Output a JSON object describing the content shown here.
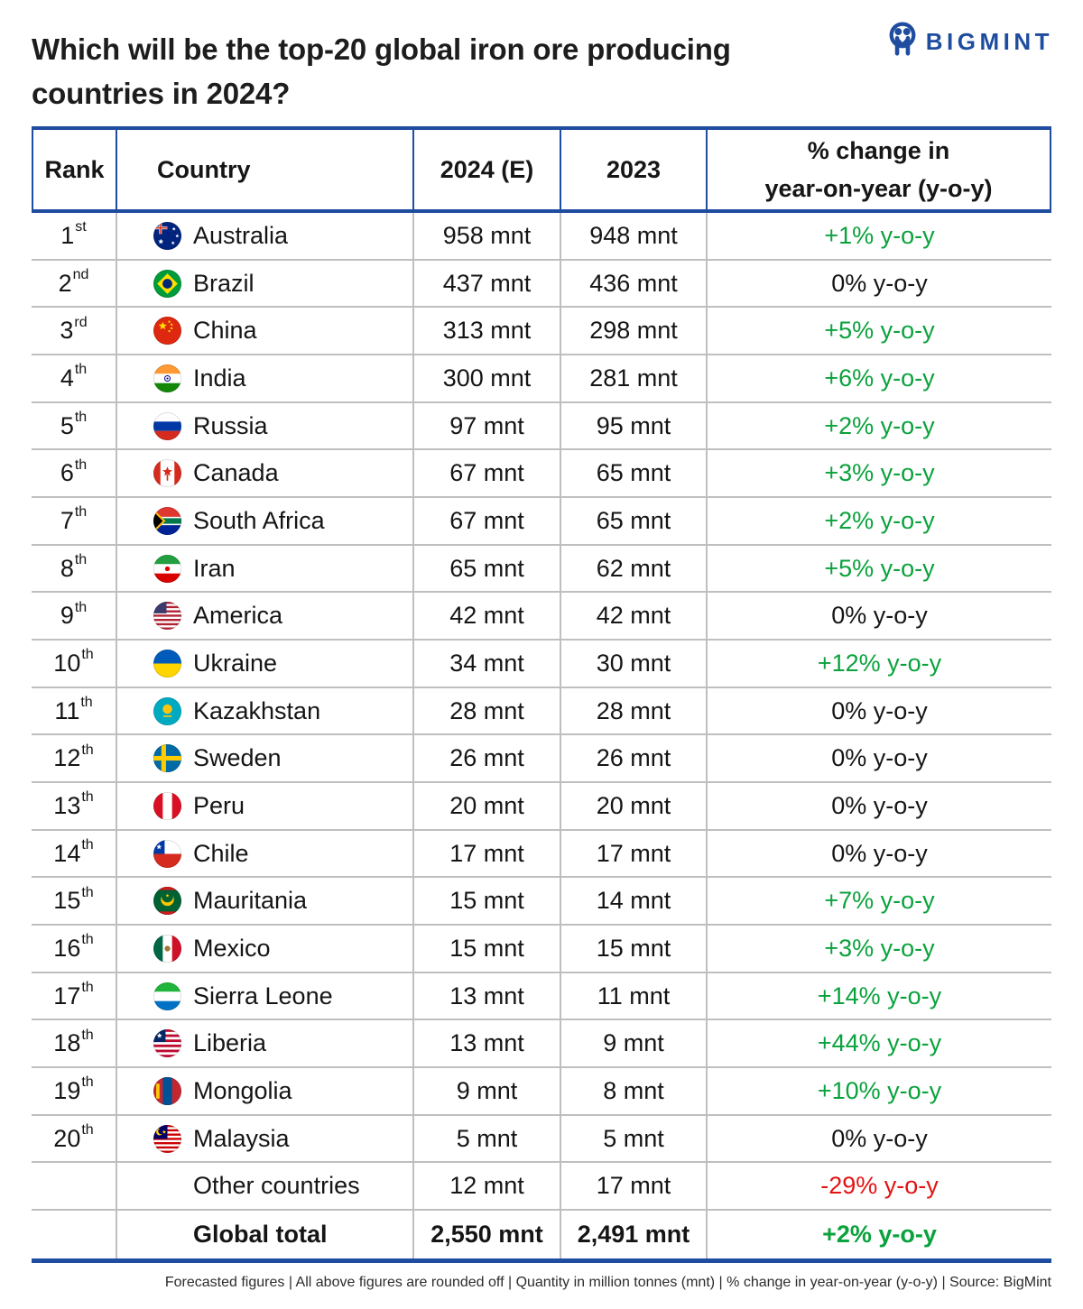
{
  "title": {
    "line1": "Which will be the top-20 global iron ore producing",
    "line2": "countries in 2024?"
  },
  "logo": {
    "text": "BIGMINT"
  },
  "colors": {
    "navy": "#1e4c9f",
    "green": "#0aa23c",
    "red": "#e31313",
    "line": "#bfbfbf"
  },
  "table": {
    "columns": {
      "rank": "Rank",
      "country": "Country",
      "y2024": "2024 (E)",
      "y2023": "2023",
      "change_line1": "% change in",
      "change_line2": "year-on-year (y-o-y)"
    },
    "rows": [
      {
        "rank": "1",
        "suffix": "st",
        "flag": "australia",
        "country": "Australia",
        "y2024": "958 mnt",
        "y2023": "948 mnt",
        "change": "+1% y-o-y",
        "trend": "up"
      },
      {
        "rank": "2",
        "suffix": "nd",
        "flag": "brazil",
        "country": "Brazil",
        "y2024": "437 mnt",
        "y2023": "436 mnt",
        "change": "0% y-o-y",
        "trend": "flat"
      },
      {
        "rank": "3",
        "suffix": "rd",
        "flag": "china",
        "country": "China",
        "y2024": "313 mnt",
        "y2023": "298 mnt",
        "change": "+5% y-o-y",
        "trend": "up"
      },
      {
        "rank": "4",
        "suffix": "th",
        "flag": "india",
        "country": "India",
        "y2024": "300 mnt",
        "y2023": "281 mnt",
        "change": "+6% y-o-y",
        "trend": "up"
      },
      {
        "rank": "5",
        "suffix": "th",
        "flag": "russia",
        "country": "Russia",
        "y2024": "97 mnt",
        "y2023": "95 mnt",
        "change": "+2% y-o-y",
        "trend": "up"
      },
      {
        "rank": "6",
        "suffix": "th",
        "flag": "canada",
        "country": "Canada",
        "y2024": "67 mnt",
        "y2023": "65 mnt",
        "change": "+3% y-o-y",
        "trend": "up"
      },
      {
        "rank": "7",
        "suffix": "th",
        "flag": "south-africa",
        "country": "South Africa",
        "y2024": "67 mnt",
        "y2023": "65 mnt",
        "change": "+2% y-o-y",
        "trend": "up"
      },
      {
        "rank": "8",
        "suffix": "th",
        "flag": "iran",
        "country": "Iran",
        "y2024": "65 mnt",
        "y2023": "62 mnt",
        "change": "+5% y-o-y",
        "trend": "up"
      },
      {
        "rank": "9",
        "suffix": "th",
        "flag": "america",
        "country": "America",
        "y2024": "42 mnt",
        "y2023": "42 mnt",
        "change": "0% y-o-y",
        "trend": "flat"
      },
      {
        "rank": "10",
        "suffix": "th",
        "flag": "ukraine",
        "country": "Ukraine",
        "y2024": "34 mnt",
        "y2023": "30 mnt",
        "change": "+12% y-o-y",
        "trend": "up"
      },
      {
        "rank": "11",
        "suffix": "th",
        "flag": "kazakhstan",
        "country": "Kazakhstan",
        "y2024": "28 mnt",
        "y2023": "28 mnt",
        "change": "0% y-o-y",
        "trend": "flat"
      },
      {
        "rank": "12",
        "suffix": "th",
        "flag": "sweden",
        "country": "Sweden",
        "y2024": "26 mnt",
        "y2023": "26 mnt",
        "change": "0% y-o-y",
        "trend": "flat"
      },
      {
        "rank": "13",
        "suffix": "th",
        "flag": "peru",
        "country": "Peru",
        "y2024": "20 mnt",
        "y2023": "20 mnt",
        "change": "0% y-o-y",
        "trend": "flat"
      },
      {
        "rank": "14",
        "suffix": "th",
        "flag": "chile",
        "country": "Chile",
        "y2024": "17 mnt",
        "y2023": "17 mnt",
        "change": "0% y-o-y",
        "trend": "flat"
      },
      {
        "rank": "15",
        "suffix": "th",
        "flag": "mauritania",
        "country": "Mauritania",
        "y2024": "15 mnt",
        "y2023": "14 mnt",
        "change": "+7% y-o-y",
        "trend": "up"
      },
      {
        "rank": "16",
        "suffix": "th",
        "flag": "mexico",
        "country": "Mexico",
        "y2024": "15 mnt",
        "y2023": "15 mnt",
        "change": "+3% y-o-y",
        "trend": "up"
      },
      {
        "rank": "17",
        "suffix": "th",
        "flag": "sierra-leone",
        "country": "Sierra Leone",
        "y2024": "13 mnt",
        "y2023": "11 mnt",
        "change": "+14% y-o-y",
        "trend": "up"
      },
      {
        "rank": "18",
        "suffix": "th",
        "flag": "liberia",
        "country": "Liberia",
        "y2024": "13 mnt",
        "y2023": "9 mnt",
        "change": "+44% y-o-y",
        "trend": "up"
      },
      {
        "rank": "19",
        "suffix": "th",
        "flag": "mongolia",
        "country": "Mongolia",
        "y2024": "9 mnt",
        "y2023": "8 mnt",
        "change": "+10% y-o-y",
        "trend": "up"
      },
      {
        "rank": "20",
        "suffix": "th",
        "flag": "malaysia",
        "country": "Malaysia",
        "y2024": "5 mnt",
        "y2023": "5 mnt",
        "change": "0% y-o-y",
        "trend": "flat"
      },
      {
        "rank": "",
        "suffix": "",
        "flag": "",
        "country": "Other countries",
        "y2024": "12 mnt",
        "y2023": "17 mnt",
        "change": "-29% y-o-y",
        "trend": "down"
      },
      {
        "rank": "",
        "suffix": "",
        "flag": "",
        "country": "Global total",
        "y2024": "2,550 mnt",
        "y2023": "2,491 mnt",
        "change": "+2% y-o-y",
        "trend": "up",
        "emphasis": true
      }
    ]
  },
  "footer": "Forecasted figures | All above figures are rounded off | Quantity in million tonnes (mnt) | % change in year-on-year (y-o-y) | Source: BigMint"
}
